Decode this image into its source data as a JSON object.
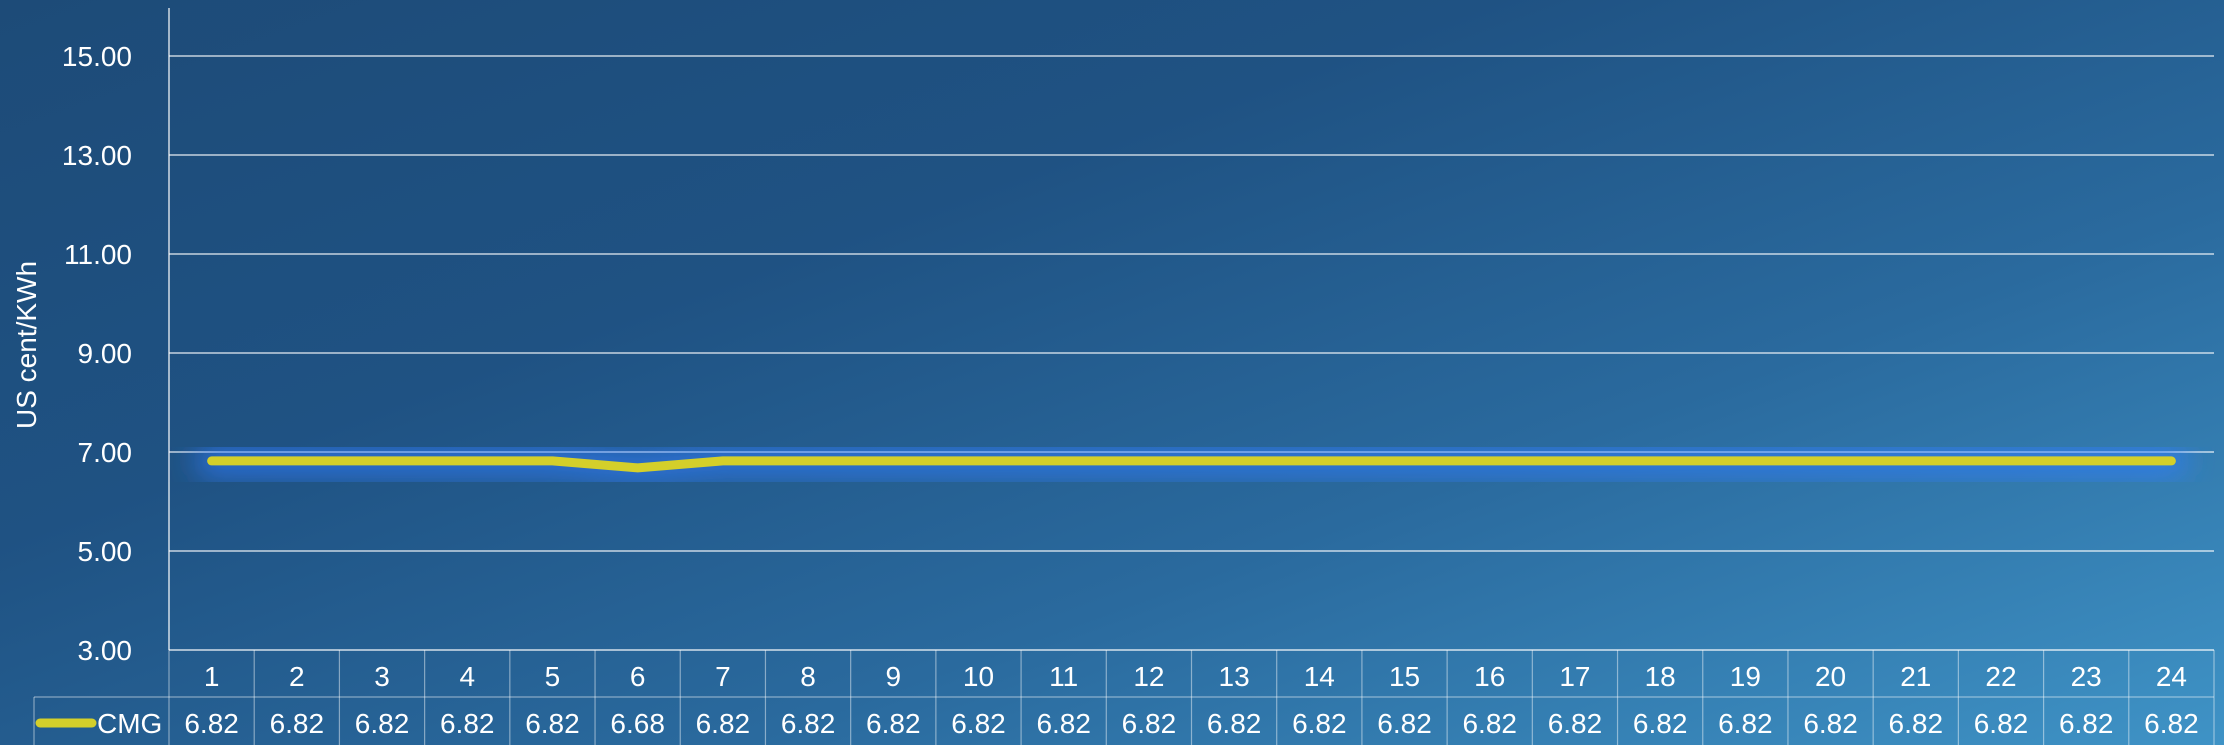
{
  "chart_data": {
    "type": "line",
    "ylabel": "US cent/KWh",
    "xlabel": "",
    "ylim": [
      3,
      16
    ],
    "yticks": [
      "3.00",
      "5.00",
      "7.00",
      "9.00",
      "11.00",
      "13.00",
      "15.00"
    ],
    "grid": true,
    "categories": [
      "1",
      "2",
      "3",
      "4",
      "5",
      "6",
      "7",
      "8",
      "9",
      "10",
      "11",
      "12",
      "13",
      "14",
      "15",
      "16",
      "17",
      "18",
      "19",
      "20",
      "21",
      "22",
      "23",
      "24"
    ],
    "series": [
      {
        "name": "CMG",
        "color": "#d4cf2a",
        "values": [
          6.82,
          6.82,
          6.82,
          6.82,
          6.82,
          6.68,
          6.82,
          6.82,
          6.82,
          6.82,
          6.82,
          6.82,
          6.82,
          6.82,
          6.82,
          6.82,
          6.82,
          6.82,
          6.82,
          6.82,
          6.82,
          6.82,
          6.82,
          6.82
        ],
        "value_labels": [
          "6.82",
          "6.82",
          "6.82",
          "6.82",
          "6.82",
          "6.68",
          "6.82",
          "6.82",
          "6.82",
          "6.82",
          "6.82",
          "6.82",
          "6.82",
          "6.82",
          "6.82",
          "6.82",
          "6.82",
          "6.82",
          "6.82",
          "6.82",
          "6.82",
          "6.82",
          "6.82",
          "6.82"
        ]
      }
    ],
    "legend": "data-table-row-header",
    "data_table": true
  }
}
